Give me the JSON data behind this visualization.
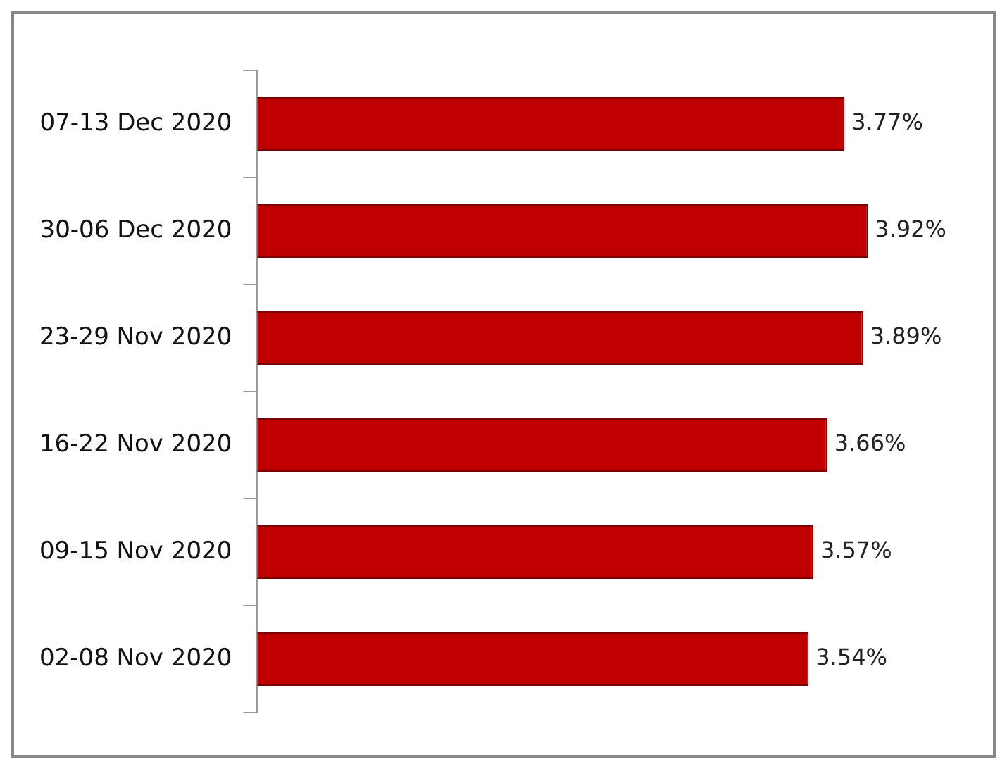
{
  "chart_data": {
    "type": "bar",
    "orientation": "horizontal",
    "categories": [
      "07-13 Dec 2020",
      "30-06 Dec 2020",
      "23-29 Nov 2020",
      "16-22 Nov 2020",
      "09-15 Nov 2020",
      "02-08 Nov 2020"
    ],
    "values": [
      3.77,
      3.92,
      3.89,
      3.66,
      3.57,
      3.54
    ],
    "value_labels": [
      "3.77%",
      "3.92%",
      "3.89%",
      "3.66%",
      "3.57%",
      "3.54%"
    ],
    "color": "#c00000",
    "tick_labels": "y",
    "grid": false,
    "legend": false
  }
}
